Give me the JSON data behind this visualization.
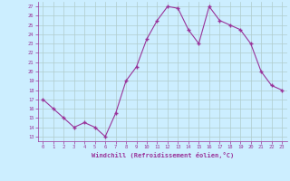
{
  "x": [
    0,
    1,
    2,
    3,
    4,
    5,
    6,
    7,
    8,
    9,
    10,
    11,
    12,
    13,
    14,
    15,
    16,
    17,
    18,
    19,
    20,
    21,
    22,
    23
  ],
  "y": [
    17,
    16,
    15,
    14,
    14.5,
    14,
    13,
    15.5,
    19,
    20.5,
    23.5,
    25.5,
    27,
    26.8,
    24.5,
    23,
    27,
    25.5,
    25,
    24.5,
    23,
    20,
    18.5,
    18
  ],
  "line_color": "#993399",
  "marker_color": "#993399",
  "bg_color": "#cceeff",
  "grid_color": "#b0cccc",
  "xlabel": "Windchill (Refroidissement éolien,°C)",
  "xlabel_color": "#993399",
  "ylabel_ticks": [
    13,
    14,
    15,
    16,
    17,
    18,
    19,
    20,
    21,
    22,
    23,
    24,
    25,
    26,
    27
  ],
  "ylim": [
    12.5,
    27.5
  ],
  "xlim": [
    -0.5,
    23.5
  ],
  "xticks": [
    0,
    1,
    2,
    3,
    4,
    5,
    6,
    7,
    8,
    9,
    10,
    11,
    12,
    13,
    14,
    15,
    16,
    17,
    18,
    19,
    20,
    21,
    22,
    23
  ],
  "tick_color": "#993399",
  "marker": "+"
}
